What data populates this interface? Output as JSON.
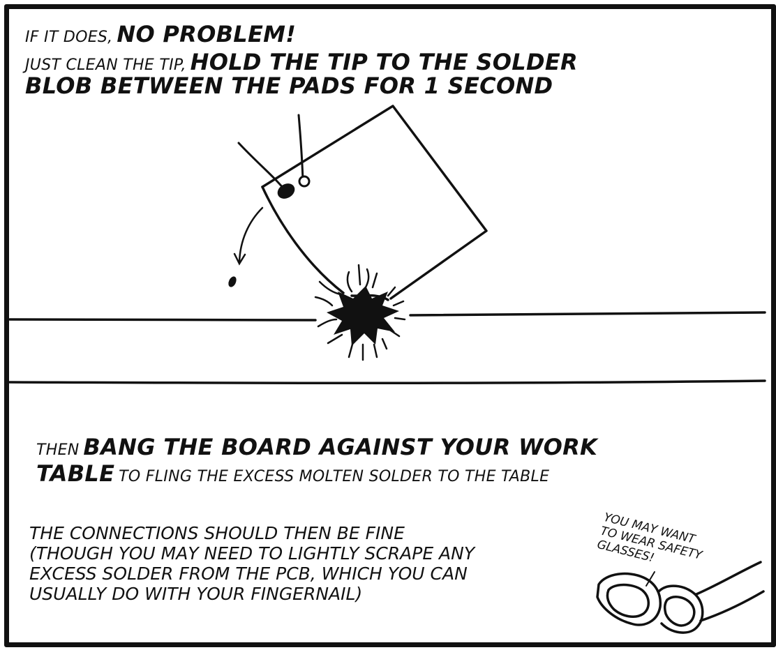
{
  "panel_top": {
    "line1_small": "If it does,",
    "line1_large": "No problem!",
    "line2_small": "Just clean the tip,",
    "line2_large": "hold the tip to the solder",
    "line3_large": "blob between the pads for 1 second"
  },
  "panel_bottom": {
    "line4_small": "Then",
    "line4_large": "bang the board against your work",
    "line5_large": "table",
    "line5_small": "to fling the excess molten solder to the table",
    "connections": [
      "The connections should then be fine",
      "(though you may need to lightly scrape any",
      "excess solder from the PCB, which you can",
      "usually do with your fingernail)"
    ],
    "safety_note": [
      "You may want",
      "to wear safety",
      "glasses!"
    ]
  },
  "colors": {
    "ink": "#111111",
    "paper": "#ffffff"
  },
  "icons": {
    "circuit_board": "pcb-drawing",
    "solder_blob": "solder-blob",
    "impact_burst": "impact-burst",
    "safety_glasses": "safety-glasses"
  }
}
